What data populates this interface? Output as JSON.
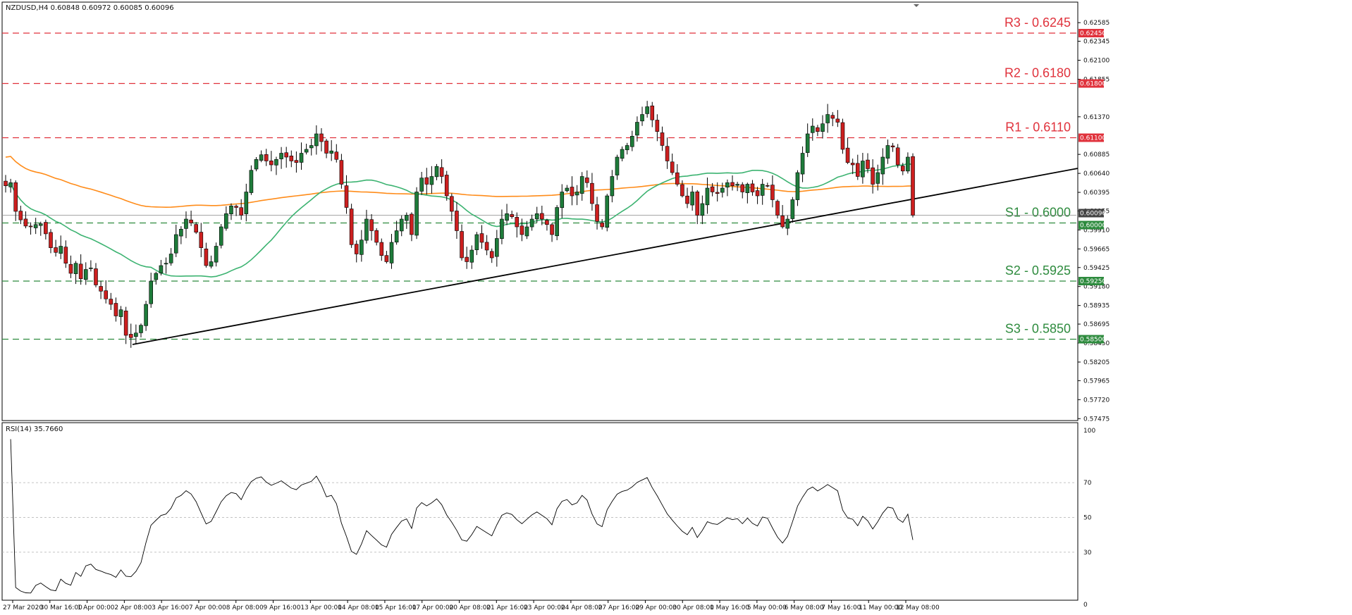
{
  "header": {
    "text": "NZDUSD,H4  0.60848 0.60972 0.60085 0.60096"
  },
  "rsi_header": {
    "text": "RSI(14) 35.7660"
  },
  "colors": {
    "up_candle": "#1e7b3a",
    "down_candle": "#cc1f1f",
    "resistance": "#e0323c",
    "support": "#2e8b3e",
    "ma_fast": "#3cb371",
    "ma_slow": "#ff8c1a",
    "trendline": "#000000",
    "rsi": "#000000"
  },
  "price_tags": {
    "current": "0.60096",
    "r3": "0.62450",
    "r2": "0.61800",
    "r1": "0.61100",
    "s1": "0.60000",
    "s2": "0.59250",
    "s3": "0.58500"
  },
  "chart_data": {
    "type": "candlestick",
    "symbol": "NZDUSD",
    "timeframe": "H4",
    "ylim": [
      0.5745,
      0.6285
    ],
    "y_ticks": [
      "0.62585",
      "0.62345",
      "0.62100",
      "0.61855",
      "0.61370",
      "0.60885",
      "0.60640",
      "0.60395",
      "0.60155",
      "0.59910",
      "0.59665",
      "0.59425",
      "0.59180",
      "0.58935",
      "0.58695",
      "0.58450",
      "0.58205",
      "0.57965",
      "0.57720",
      "0.57475"
    ],
    "x_ticks": [
      "27 Mar 2020",
      "30 Mar 16:00",
      "1 Apr 00:00",
      "2 Apr 08:00",
      "3 Apr 16:00",
      "7 Apr 00:00",
      "8 Apr 08:00",
      "9 Apr 16:00",
      "13 Apr 00:00",
      "14 Apr 08:00",
      "15 Apr 16:00",
      "17 Apr 00:00",
      "20 Apr 08:00",
      "21 Apr 16:00",
      "23 Apr 00:00",
      "24 Apr 08:00",
      "27 Apr 16:00",
      "29 Apr 00:00",
      "30 Apr 08:00",
      "1 May 16:00",
      "5 May 00:00",
      "6 May 08:00",
      "7 May 16:00",
      "11 May 00:00",
      "12 May 08:00"
    ],
    "levels": [
      {
        "label": "R3 - 0.6245",
        "value": 0.6245,
        "kind": "resistance"
      },
      {
        "label": "R2 - 0.6180",
        "value": 0.618,
        "kind": "resistance"
      },
      {
        "label": "R1 - 0.6110",
        "value": 0.611,
        "kind": "resistance"
      },
      {
        "label": "S1 - 0.6000",
        "value": 0.6,
        "kind": "support"
      },
      {
        "label": "S2 - 0.5925",
        "value": 0.5925,
        "kind": "support"
      },
      {
        "label": "S3 - 0.5850",
        "value": 0.585,
        "kind": "support"
      }
    ],
    "closes": [
      0.6048,
      0.6052,
      0.6015,
      0.6004,
      0.5996,
      0.5995,
      0.5998,
      0.5999,
      0.5986,
      0.5968,
      0.5962,
      0.597,
      0.5948,
      0.5935,
      0.5948,
      0.5928,
      0.594,
      0.5942,
      0.592,
      0.5912,
      0.5902,
      0.5895,
      0.588,
      0.5888,
      0.5855,
      0.5852,
      0.5858,
      0.5868,
      0.5895,
      0.5925,
      0.5935,
      0.5945,
      0.5948,
      0.596,
      0.5985,
      0.5992,
      0.6005,
      0.6,
      0.5988,
      0.5968,
      0.5945,
      0.595,
      0.597,
      0.5995,
      0.6012,
      0.6022,
      0.602,
      0.601,
      0.604,
      0.6068,
      0.6082,
      0.6088,
      0.608,
      0.6075,
      0.6082,
      0.609,
      0.6085,
      0.608,
      0.6078,
      0.609,
      0.6095,
      0.61,
      0.6115,
      0.6105,
      0.609,
      0.6093,
      0.6082,
      0.605,
      0.602,
      0.5972,
      0.596,
      0.5978,
      0.6005,
      0.599,
      0.5975,
      0.5958,
      0.595,
      0.5975,
      0.599,
      0.6005,
      0.601,
      0.5985,
      0.604,
      0.6058,
      0.605,
      0.606,
      0.6073,
      0.606,
      0.6035,
      0.6015,
      0.599,
      0.5955,
      0.595,
      0.5965,
      0.5985,
      0.5975,
      0.5965,
      0.5955,
      0.598,
      0.6005,
      0.6012,
      0.6008,
      0.5995,
      0.5985,
      0.5995,
      0.6005,
      0.6012,
      0.6005,
      0.5998,
      0.5985,
      0.602,
      0.604,
      0.6045,
      0.6035,
      0.604,
      0.606,
      0.6052,
      0.6025,
      0.6002,
      0.5995,
      0.6035,
      0.606,
      0.6085,
      0.6095,
      0.61,
      0.6112,
      0.613,
      0.614,
      0.615,
      0.6133,
      0.6118,
      0.61,
      0.608,
      0.6065,
      0.605,
      0.6035,
      0.6025,
      0.604,
      0.601,
      0.6025,
      0.6045,
      0.604,
      0.6038,
      0.6045,
      0.6052,
      0.6048,
      0.605,
      0.604,
      0.605,
      0.604,
      0.6035,
      0.605,
      0.6048,
      0.603,
      0.601,
      0.5995,
      0.6005,
      0.603,
      0.6065,
      0.609,
      0.6115,
      0.6125,
      0.6118,
      0.6128,
      0.614,
      0.6135,
      0.613,
      0.6095,
      0.6078,
      0.6075,
      0.606,
      0.608,
      0.607,
      0.605,
      0.6065,
      0.6085,
      0.61,
      0.6098,
      0.6075,
      0.6067,
      0.6085,
      0.601
    ]
  }
}
